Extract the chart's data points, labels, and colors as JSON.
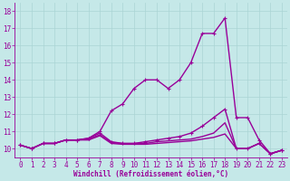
{
  "xlabel": "Windchill (Refroidissement éolien,°C)",
  "xlim": [
    -0.5,
    23.5
  ],
  "ylim": [
    9.5,
    18.5
  ],
  "xticks": [
    0,
    1,
    2,
    3,
    4,
    5,
    6,
    7,
    8,
    9,
    10,
    11,
    12,
    13,
    14,
    15,
    16,
    17,
    18,
    19,
    20,
    21,
    22,
    23
  ],
  "yticks": [
    10,
    11,
    12,
    13,
    14,
    15,
    16,
    17,
    18
  ],
  "background_color": "#c5e8e8",
  "grid_color": "#aad4d4",
  "line_color": "#990099",
  "curves": [
    {
      "x": [
        0,
        1,
        2,
        3,
        4,
        5,
        6,
        7,
        8,
        9,
        10,
        11,
        12,
        13,
        14,
        15,
        16,
        17,
        18,
        19,
        20,
        21,
        22,
        23
      ],
      "y": [
        10.2,
        10.0,
        10.3,
        10.3,
        10.5,
        10.5,
        10.6,
        11.0,
        12.2,
        12.6,
        13.5,
        14.0,
        14.0,
        13.5,
        14.0,
        15.0,
        16.7,
        16.7,
        17.6,
        11.8,
        11.8,
        10.5,
        9.7,
        9.9
      ],
      "marker": true,
      "lw": 1.0
    },
    {
      "x": [
        0,
        1,
        2,
        3,
        4,
        5,
        6,
        7,
        8,
        9,
        10,
        11,
        12,
        13,
        14,
        15,
        16,
        17,
        18,
        19,
        20,
        21,
        22,
        23
      ],
      "y": [
        10.2,
        10.0,
        10.3,
        10.3,
        10.5,
        10.5,
        10.6,
        10.9,
        10.4,
        10.3,
        10.3,
        10.4,
        10.5,
        10.6,
        10.7,
        10.9,
        11.3,
        11.8,
        12.3,
        10.0,
        10.0,
        10.3,
        9.7,
        9.9
      ],
      "marker": true,
      "lw": 1.0
    },
    {
      "x": [
        0,
        1,
        2,
        3,
        4,
        5,
        6,
        7,
        8,
        9,
        10,
        11,
        12,
        13,
        14,
        15,
        16,
        17,
        18,
        19,
        20,
        21,
        22,
        23
      ],
      "y": [
        10.2,
        10.0,
        10.3,
        10.3,
        10.5,
        10.5,
        10.55,
        10.8,
        10.35,
        10.3,
        10.3,
        10.3,
        10.4,
        10.45,
        10.5,
        10.55,
        10.7,
        10.9,
        11.5,
        10.0,
        10.0,
        10.3,
        9.7,
        9.9
      ],
      "marker": false,
      "lw": 1.0
    },
    {
      "x": [
        0,
        1,
        2,
        3,
        4,
        5,
        6,
        7,
        8,
        9,
        10,
        11,
        12,
        13,
        14,
        15,
        16,
        17,
        18,
        19,
        20,
        21,
        22,
        23
      ],
      "y": [
        10.2,
        10.0,
        10.3,
        10.3,
        10.5,
        10.5,
        10.5,
        10.75,
        10.3,
        10.25,
        10.25,
        10.25,
        10.3,
        10.35,
        10.4,
        10.45,
        10.55,
        10.65,
        10.85,
        10.0,
        10.0,
        10.3,
        9.7,
        9.9
      ],
      "marker": false,
      "lw": 1.0
    }
  ],
  "tick_labelsize": 5.5,
  "xlabel_fontsize": 5.5
}
